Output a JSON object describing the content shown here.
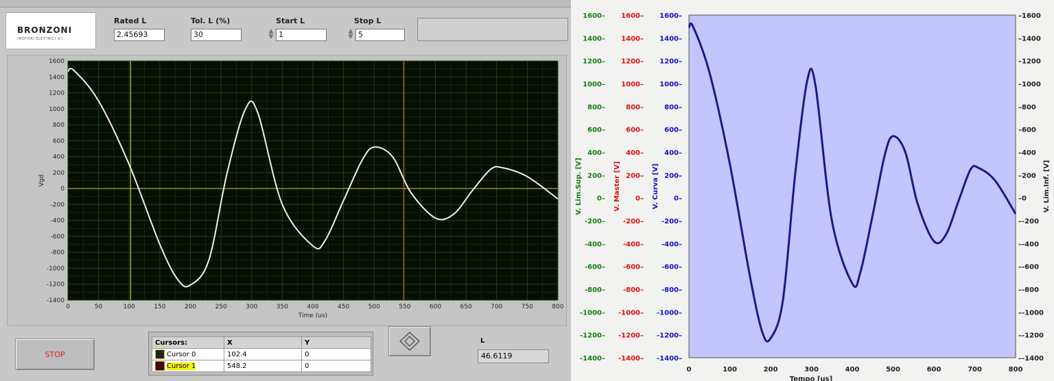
{
  "app": {
    "logo_name": "BRONZONI",
    "logo_sub": "MOTORI ELETTRICI srl"
  },
  "controls": {
    "rated_l": {
      "label": "Rated L",
      "value": "2.45693"
    },
    "tol_l": {
      "label": "Tol. L (%)",
      "value": "30"
    },
    "start_l": {
      "label": "Start L",
      "value": "1"
    },
    "stop_l": {
      "label": "Stop L",
      "value": "5"
    }
  },
  "stop_button_label": "STOP",
  "cursors": {
    "header": [
      "Cursors:",
      "X",
      "Y"
    ],
    "rows": [
      {
        "name": "Cursor 0",
        "x": "102.4",
        "y": "0"
      },
      {
        "name": "Cursor 1",
        "x": "548.2",
        "y": "0"
      }
    ]
  },
  "l_label": "L",
  "l_value": "46.6119",
  "colors": {
    "plot_bg_left": "#070f05",
    "grid_left": "#1b4416",
    "trace_left": "#f1f1e6",
    "cursor0": "#c9c437",
    "cursor1": "#c0662a",
    "plot_bg_right": "#c4c4ff",
    "trace_right": "#1a1a80",
    "axis_green": "#108010",
    "axis_red": "#e01010",
    "axis_blue": "#1010c8"
  },
  "chart_data": [
    {
      "type": "line",
      "xlabel": "Time (us)",
      "ylabel": "Vgd",
      "xlim": [
        0,
        800
      ],
      "ylim": [
        -1400,
        1600
      ],
      "xticks": [
        0,
        50,
        100,
        150,
        200,
        250,
        300,
        350,
        400,
        450,
        500,
        550,
        600,
        650,
        700,
        750,
        800
      ],
      "yticks": [
        1600,
        1400,
        1200,
        1000,
        800,
        600,
        400,
        200,
        0,
        -200,
        -400,
        -600,
        -800,
        -1000,
        -1200,
        -1400
      ],
      "cursors_x": [
        102.4,
        548.2
      ],
      "grid": true,
      "series": [
        {
          "x": [
            0,
            10,
            50,
            100,
            150,
            180,
            200,
            230,
            260,
            290,
            310,
            350,
            400,
            420,
            450,
            480,
            500,
            530,
            560,
            600,
            630,
            660,
            690,
            710,
            750,
            800
          ],
          "y": [
            1470,
            1480,
            1100,
            300,
            -700,
            -1150,
            -1210,
            -900,
            200,
            1000,
            950,
            -200,
            -720,
            -650,
            -150,
            350,
            520,
            400,
            -50,
            -370,
            -320,
            -30,
            240,
            260,
            150,
            -130
          ]
        }
      ]
    },
    {
      "type": "line",
      "xlabel": "Tempo [us]",
      "ylabels": [
        "V. Lim.Sup. [V]",
        "V. Master [V]",
        "V. Curva [V]",
        "V. Lim.Inf. [V]"
      ],
      "xlim": [
        0,
        800
      ],
      "ylim": [
        -1400,
        1600
      ],
      "xticks": [
        0,
        100,
        200,
        300,
        400,
        500,
        600,
        700,
        800
      ],
      "yticks": [
        1600,
        1400,
        1200,
        1000,
        800,
        600,
        400,
        200,
        0,
        -200,
        -400,
        -600,
        -800,
        -1000,
        -1200,
        -1400
      ],
      "grid": false,
      "series": [
        {
          "x": [
            0,
            10,
            50,
            100,
            150,
            180,
            200,
            230,
            260,
            290,
            310,
            350,
            400,
            420,
            450,
            480,
            500,
            530,
            560,
            600,
            630,
            660,
            690,
            710,
            750,
            800
          ],
          "y": [
            1490,
            1500,
            1100,
            300,
            -700,
            -1180,
            -1230,
            -900,
            200,
            1030,
            980,
            -200,
            -750,
            -650,
            -150,
            380,
            540,
            400,
            -50,
            -380,
            -320,
            -30,
            250,
            260,
            150,
            -140
          ]
        }
      ]
    }
  ]
}
